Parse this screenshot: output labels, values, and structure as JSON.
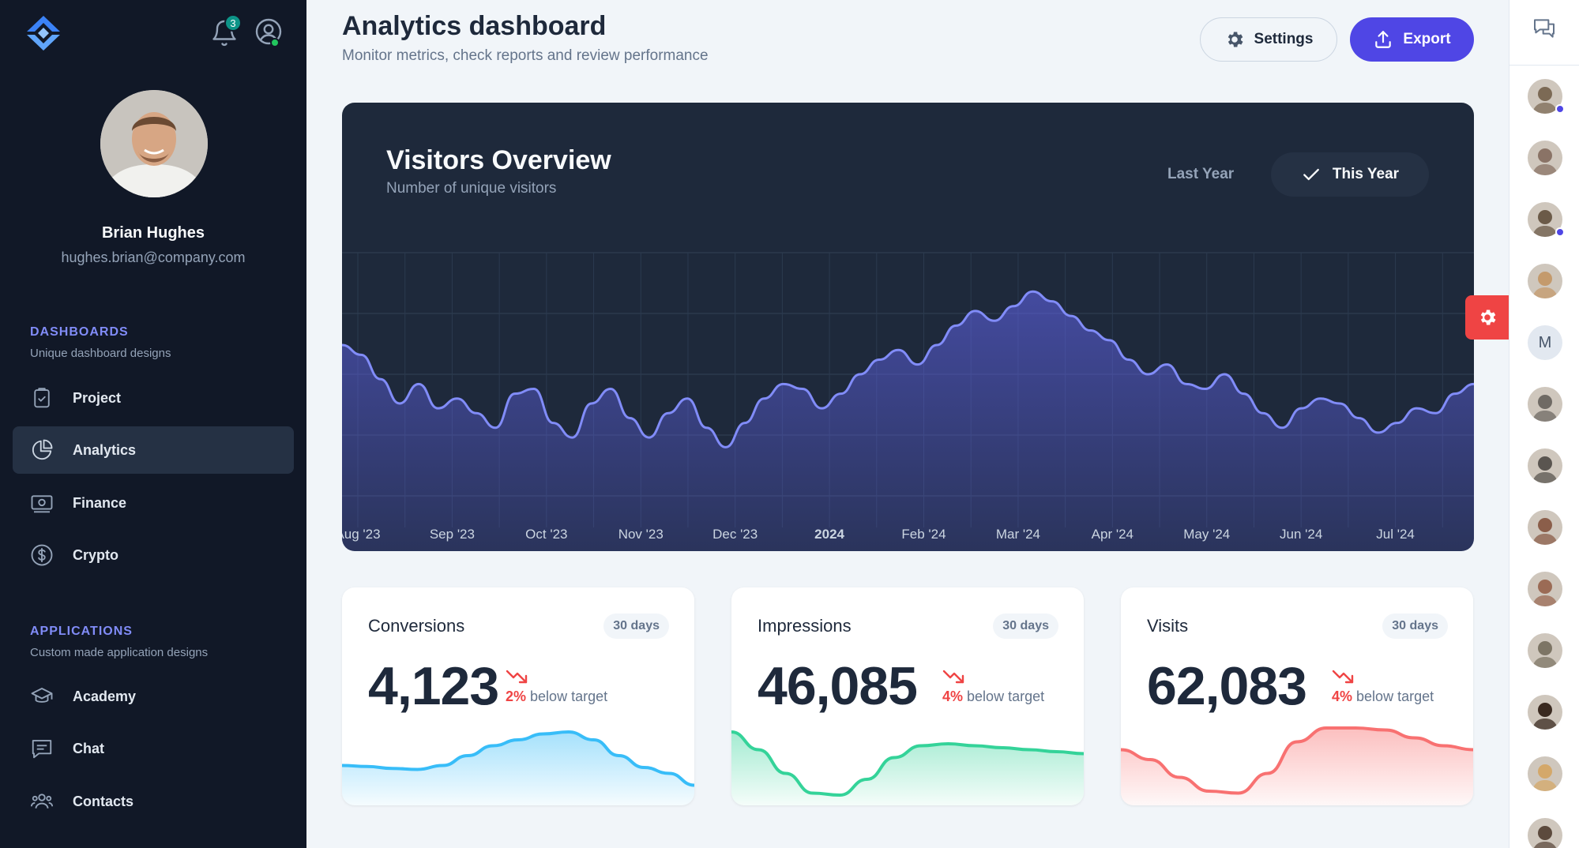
{
  "sidebar": {
    "notification_count": "3",
    "user": {
      "name": "Brian Hughes",
      "email": "hughes.brian@company.com"
    },
    "sections": [
      {
        "title": "DASHBOARDS",
        "subtitle": "Unique dashboard designs",
        "items": [
          {
            "label": "Project"
          },
          {
            "label": "Analytics"
          },
          {
            "label": "Finance"
          },
          {
            "label": "Crypto"
          }
        ]
      },
      {
        "title": "APPLICATIONS",
        "subtitle": "Custom made application designs",
        "items": [
          {
            "label": "Academy"
          },
          {
            "label": "Chat"
          },
          {
            "label": "Contacts"
          }
        ]
      }
    ]
  },
  "header": {
    "title": "Analytics dashboard",
    "subtitle": "Monitor metrics, check reports and review performance",
    "settings_label": "Settings",
    "export_label": "Export"
  },
  "visitors": {
    "title": "Visitors Overview",
    "subtitle": "Number of unique visitors",
    "toggle_last": "Last Year",
    "toggle_this": "This Year"
  },
  "chart_data": [
    {
      "type": "area",
      "title": "Visitors Overview",
      "subtitle": "Number of unique visitors",
      "x_tick_labels": [
        "Aug '23",
        "Sep '23",
        "Oct '23",
        "Nov '23",
        "Dec '23",
        "2024",
        "Feb '24",
        "Mar '24",
        "Apr '24",
        "May '24",
        "Jun '24",
        "Jul '24"
      ],
      "series": [
        {
          "name": "This Year",
          "values": [
            62,
            58,
            48,
            38,
            46,
            36,
            40,
            34,
            28,
            42,
            44,
            30,
            24,
            38,
            44,
            32,
            24,
            34,
            40,
            28,
            20,
            30,
            40,
            46,
            44,
            36,
            42,
            50,
            56,
            60,
            54,
            62,
            70,
            76,
            72,
            78,
            84,
            80,
            74,
            68,
            64,
            56,
            50,
            54,
            46,
            44,
            50,
            42,
            34,
            28,
            36,
            40,
            38,
            32,
            26,
            30,
            36,
            34,
            42,
            46
          ]
        }
      ],
      "grid": true
    },
    {
      "type": "area",
      "title": "Conversions",
      "values": [
        34,
        33,
        31,
        30,
        34,
        44,
        54,
        60,
        66,
        68,
        60,
        44,
        32,
        26,
        14
      ]
    },
    {
      "type": "area",
      "title": "Impressions",
      "values": [
        68,
        50,
        26,
        6,
        4,
        20,
        42,
        54,
        56,
        54,
        52,
        50,
        48,
        46
      ]
    },
    {
      "type": "area",
      "title": "Visits",
      "values": [
        50,
        40,
        22,
        8,
        6,
        26,
        58,
        72,
        72,
        70,
        62,
        54,
        50
      ]
    }
  ],
  "stats": [
    {
      "title": "Conversions",
      "period": "30 days",
      "value": "4,123",
      "pct": "2%",
      "note": "below target",
      "color": "#38bdf8"
    },
    {
      "title": "Impressions",
      "period": "30 days",
      "value": "46,085",
      "pct": "4%",
      "note": "below target",
      "color": "#34d399"
    },
    {
      "title": "Visits",
      "period": "30 days",
      "value": "62,083",
      "pct": "4%",
      "note": "below target",
      "color": "#f87171"
    }
  ],
  "right_panel": {
    "contacts": [
      {
        "name": "contact-1",
        "online": true,
        "color": "#7c6a55"
      },
      {
        "name": "contact-2",
        "online": false,
        "color": "#8a7366"
      },
      {
        "name": "contact-3",
        "online": true,
        "color": "#6b5a48"
      },
      {
        "name": "contact-4",
        "online": false,
        "color": "#c49a6c"
      },
      {
        "name": "contact-5",
        "letter": "M"
      },
      {
        "name": "contact-6",
        "online": false,
        "color": "#6f6a64"
      },
      {
        "name": "contact-7",
        "online": false,
        "color": "#5a5550"
      },
      {
        "name": "contact-8",
        "online": false,
        "color": "#8b5e4a"
      },
      {
        "name": "contact-9",
        "online": false,
        "color": "#9b6b55"
      },
      {
        "name": "contact-10",
        "online": false,
        "color": "#7d7565"
      },
      {
        "name": "contact-11",
        "online": false,
        "color": "#3a2a20"
      },
      {
        "name": "contact-12",
        "online": false,
        "color": "#d4a86a"
      },
      {
        "name": "contact-13",
        "online": false,
        "color": "#5c4a3d"
      }
    ]
  },
  "colors": {
    "accent": "#4f46e5",
    "sidebar_bg": "#111827",
    "chart_line": "#818cf8",
    "alert": "#ef4444"
  }
}
